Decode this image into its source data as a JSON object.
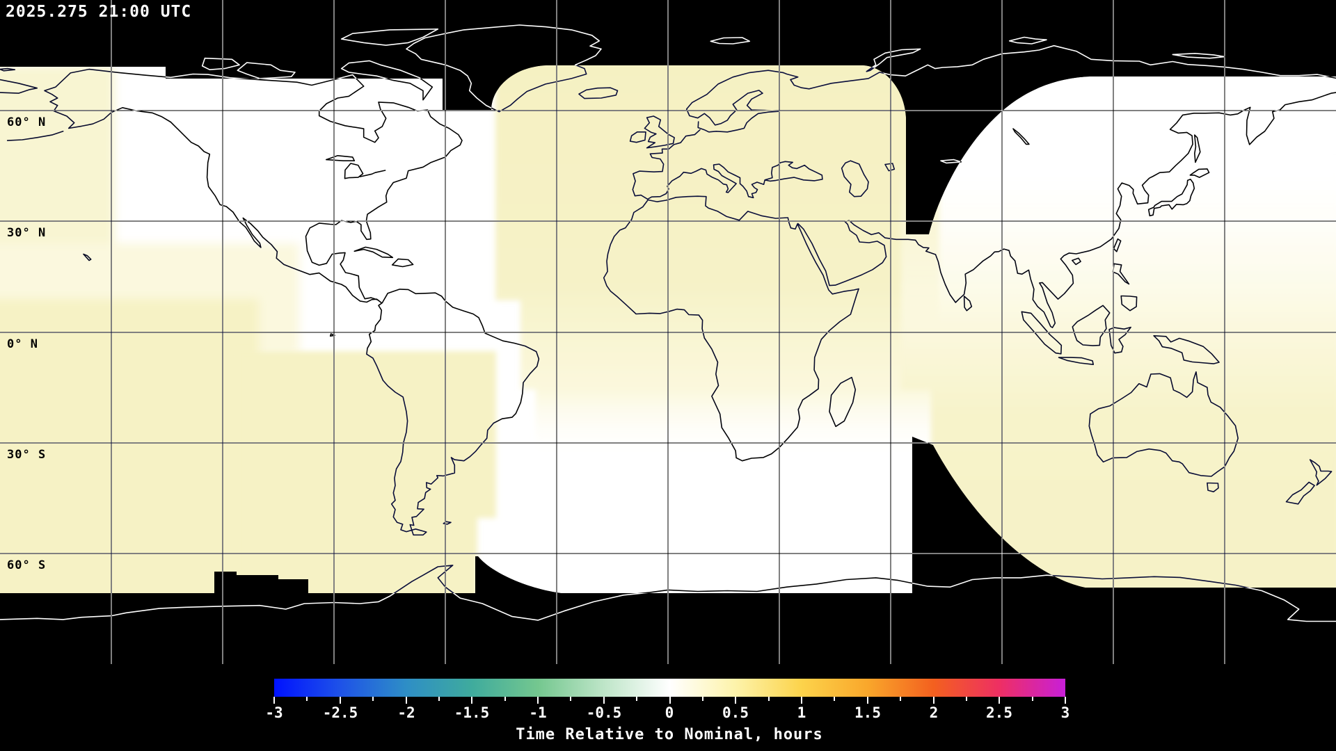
{
  "header": {
    "timestamp": "2025.275 21:00 UTC"
  },
  "map": {
    "lat_labels": [
      "60° N",
      "30° N",
      "0° N",
      "30° S",
      "60° S"
    ],
    "lon_gridline_spacing_deg": 30,
    "lat_gridline_spacing_deg": 30,
    "palette": {
      "background": "#000000",
      "no_data": "#000000",
      "zone_nominal_white": "#ffffff",
      "zone_cream": "#fbf8de",
      "zone_pale_yellow": "#f6f2c5",
      "zone_pale_west": "#f8f5d2",
      "coastline_on_light": "#000000",
      "coastline_on_dark": "#ffffff",
      "gridline_on_light": "#000000",
      "gridline_on_dark": "#ffffff"
    }
  },
  "colorbar": {
    "title": "Time Relative to Nominal, hours",
    "tick_labels": [
      "-3",
      "-2.5",
      "-2",
      "-1.5",
      "-1",
      "-0.5",
      "0",
      "0.5",
      "1",
      "1.5",
      "2",
      "2.5",
      "3"
    ],
    "min_hours": -3,
    "max_hours": 3,
    "major_tick_step_hours": 0.5,
    "minor_tick_step_hours": 0.25,
    "stop_colors": [
      "#0012ff",
      "#1e52e8",
      "#2e8ec6",
      "#3fab9d",
      "#74c78f",
      "#bee5c8",
      "#ffffff",
      "#fdf3aa",
      "#fcd34b",
      "#f9a72b",
      "#f3601f",
      "#ee2f63",
      "#c81fd8"
    ]
  },
  "chart_data": {
    "type": "heatmap",
    "title": "Time Relative to Nominal, hours",
    "timestamp": "2025.275 21:00 UTC",
    "projection": "equirectangular",
    "colorbar_range_hours": [
      -3,
      3
    ],
    "lat_tick_labels": [
      "60° N",
      "30° N",
      "0° N",
      "30° S",
      "60° S"
    ],
    "field_summary": "Nearly all data between ~70N and ~70S lies near nominal: 0 h (white) over the Americas/Atlantic and NW Pacific, about +0.25 to +0.5 h (pale yellow) over Europe/Africa, the far west Pacific, South America and Australia. Black no-data zones: both polar caps, a wedge near 55-90E north of ~25N, a strip near 66-90E south of ~30S, and small steps near 120-97W at ~65S."
  }
}
